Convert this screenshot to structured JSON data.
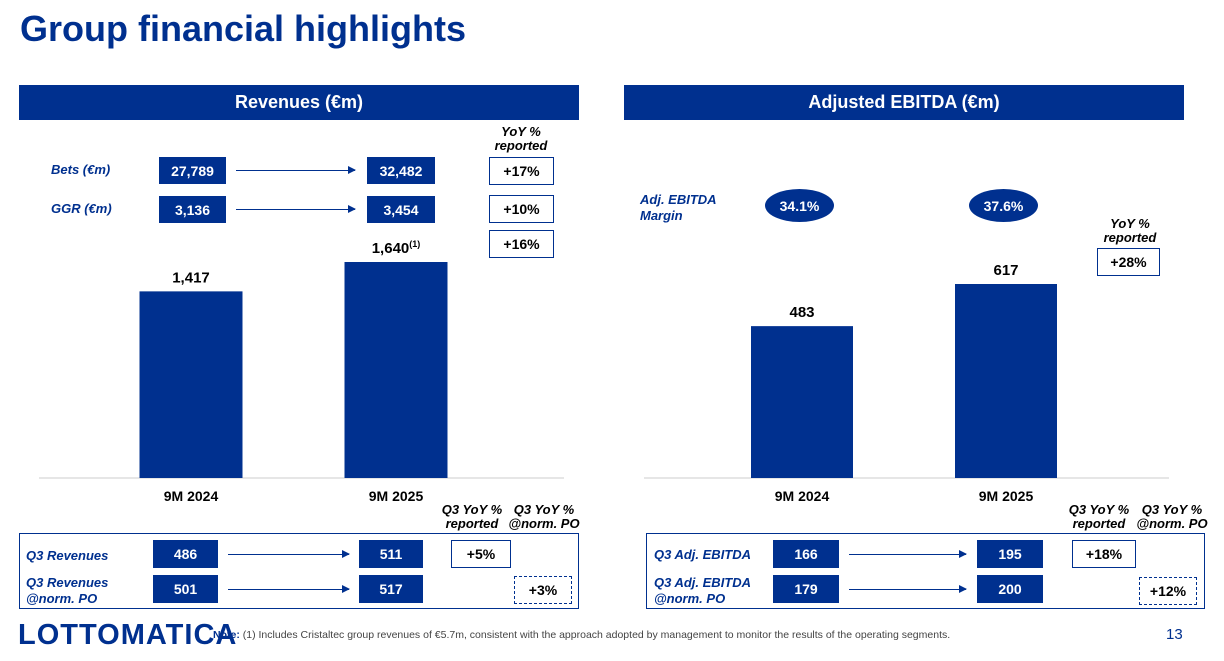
{
  "title": "Group financial highlights",
  "colors": {
    "brand_blue": "#00308f"
  },
  "revenues": {
    "header": "Revenues (€m)",
    "yoy_header": [
      "YoY %",
      "reported"
    ],
    "top_rows": [
      {
        "label": "Bets (€m)",
        "v2024": "27,789",
        "v2025": "32,482",
        "yoy": "+17%"
      },
      {
        "label": "GGR (€m)",
        "v2024": "3,136",
        "v2025": "3,454",
        "yoy": "+10%"
      }
    ],
    "total_yoy": "+16%",
    "bottom_headers": {
      "reported": [
        "Q3 YoY %",
        "reported"
      ],
      "norm": [
        "Q3 YoY %",
        "@norm. PO"
      ]
    },
    "bottom_rows": [
      {
        "label": [
          "Q3 Revenues"
        ],
        "v2024": "486",
        "v2025": "511",
        "yoy": "+5%",
        "type": "reported"
      },
      {
        "label": [
          "Q3 Revenues",
          "@norm. PO"
        ],
        "v2024": "501",
        "v2025": "517",
        "yoy": "+3%",
        "type": "norm"
      }
    ]
  },
  "ebitda": {
    "header": "Adjusted EBITDA (€m)",
    "margin_label": [
      "Adj. EBITDA",
      "Margin"
    ],
    "margins": [
      "34.1%",
      "37.6%"
    ],
    "yoy_header": [
      "YoY %",
      "reported"
    ],
    "total_yoy": "+28%",
    "bottom_headers": {
      "reported": [
        "Q3 YoY %",
        "reported"
      ],
      "norm": [
        "Q3 YoY %",
        "@norm. PO"
      ]
    },
    "bottom_rows": [
      {
        "label": [
          "Q3 Adj. EBITDA"
        ],
        "v2024": "166",
        "v2025": "195",
        "yoy": "+18%",
        "type": "reported"
      },
      {
        "label": [
          "Q3 Adj. EBITDA",
          "@norm. PO"
        ],
        "v2024": "179",
        "v2025": "200",
        "yoy": "+12%",
        "type": "norm"
      }
    ]
  },
  "chart_data": [
    {
      "type": "bar",
      "title": "Revenues (€m)",
      "categories": [
        "9M 2024",
        "9M 2025"
      ],
      "values": [
        1417,
        1640
      ],
      "value_labels": [
        "1,417",
        "1,640"
      ],
      "value_label_superscripts": [
        "",
        "(1)"
      ],
      "ylim": [
        0,
        1640
      ],
      "grid": false
    },
    {
      "type": "bar",
      "title": "Adjusted EBITDA (€m)",
      "categories": [
        "9M 2024",
        "9M 2025"
      ],
      "values": [
        483,
        617
      ],
      "value_labels": [
        "483",
        "617"
      ],
      "ylim": [
        0,
        617
      ],
      "grid": false
    }
  ],
  "footer": {
    "logo": "LOTTOMATICA",
    "note_label": "Note:",
    "note_text": "(1) Includes Cristaltec group revenues of €5.7m, consistent with the approach adopted by management to monitor the results of the operating segments.",
    "page_number": "13"
  }
}
